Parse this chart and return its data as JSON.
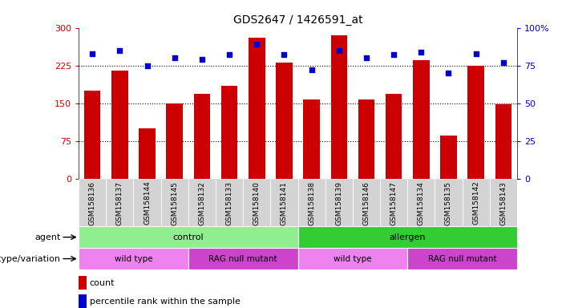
{
  "title": "GDS2647 / 1426591_at",
  "samples": [
    "GSM158136",
    "GSM158137",
    "GSM158144",
    "GSM158145",
    "GSM158132",
    "GSM158133",
    "GSM158140",
    "GSM158141",
    "GSM158138",
    "GSM158139",
    "GSM158146",
    "GSM158147",
    "GSM158134",
    "GSM158135",
    "GSM158142",
    "GSM158143"
  ],
  "counts": [
    175,
    215,
    100,
    150,
    168,
    185,
    280,
    230,
    158,
    285,
    158,
    168,
    235,
    85,
    225,
    148
  ],
  "percentile_ranks": [
    83,
    85,
    75,
    80,
    79,
    82,
    89,
    82,
    72,
    85,
    80,
    82,
    84,
    70,
    83,
    77
  ],
  "ylim_left": [
    0,
    300
  ],
  "ylim_right": [
    0,
    100
  ],
  "yticks_left": [
    0,
    75,
    150,
    225,
    300
  ],
  "yticks_right": [
    0,
    25,
    50,
    75,
    100
  ],
  "ytick_labels_right": [
    "0",
    "25",
    "50",
    "75",
    "100%"
  ],
  "bar_color": "#cc0000",
  "dot_color": "#0000cc",
  "hline_y": [
    75,
    150,
    225
  ],
  "agent_groups": [
    {
      "label": "control",
      "start": 0,
      "end": 8,
      "color": "#90ee90"
    },
    {
      "label": "allergen",
      "start": 8,
      "end": 16,
      "color": "#33cc33"
    }
  ],
  "genotype_groups": [
    {
      "label": "wild type",
      "start": 0,
      "end": 4,
      "color": "#ee82ee"
    },
    {
      "label": "RAG null mutant",
      "start": 4,
      "end": 8,
      "color": "#cc44cc"
    },
    {
      "label": "wild type",
      "start": 8,
      "end": 12,
      "color": "#ee82ee"
    },
    {
      "label": "RAG null mutant",
      "start": 12,
      "end": 16,
      "color": "#cc44cc"
    }
  ],
  "agent_label": "agent",
  "genotype_label": "genotype/variation",
  "legend_count_label": "count",
  "legend_pct_label": "percentile rank within the sample",
  "bg_color": "#ffffff",
  "xticklabel_bg": "#d3d3d3"
}
